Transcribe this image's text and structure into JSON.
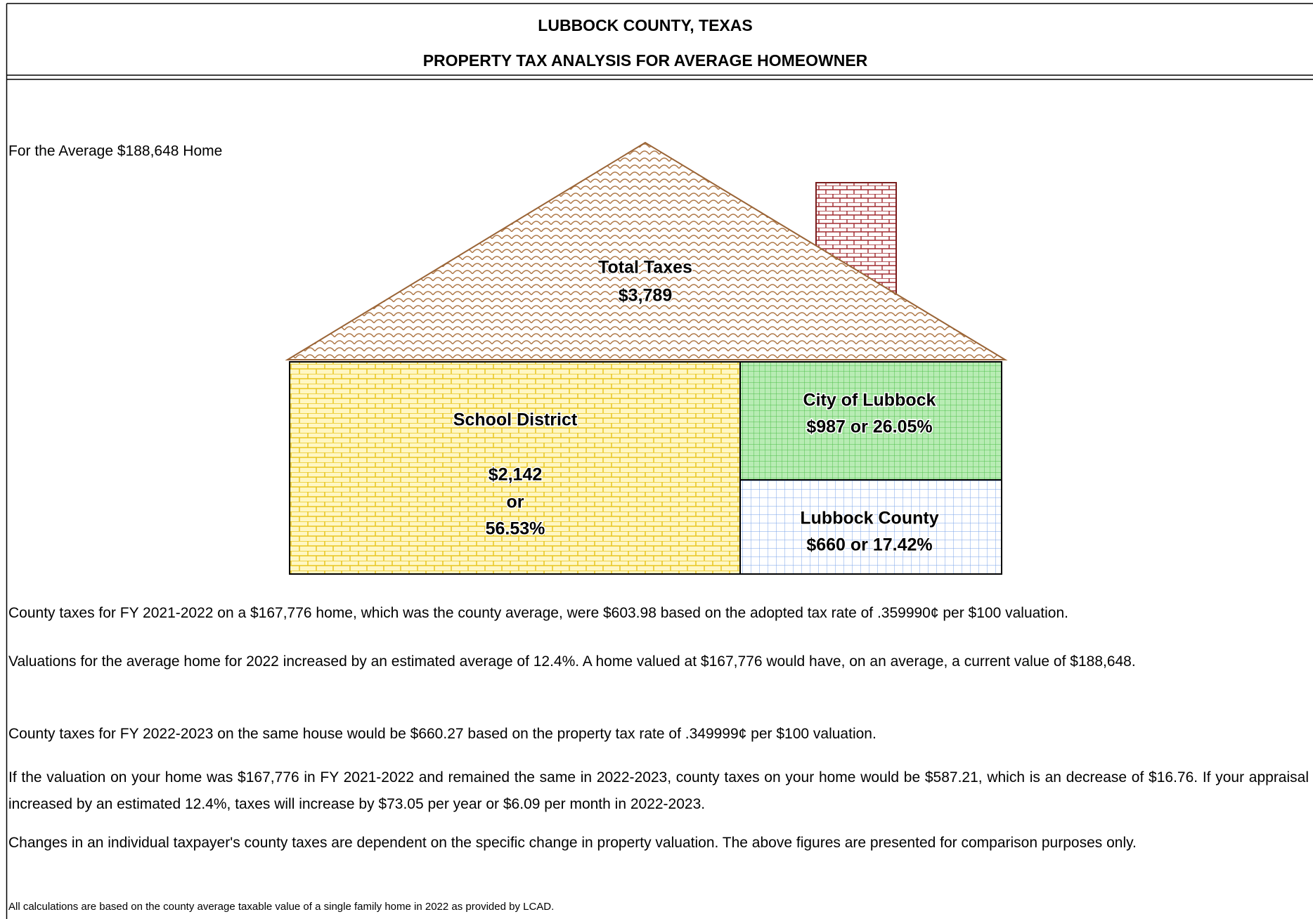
{
  "header": {
    "title": "LUBBOCK COUNTY, TEXAS",
    "subtitle": "PROPERTY TAX ANALYSIS FOR AVERAGE HOMEOWNER"
  },
  "caption": "For the Average $188,648 Home",
  "house": {
    "roof": {
      "label": "Total Taxes",
      "amount": "$3,789"
    },
    "school": {
      "label": "School District",
      "amount": "$2,142",
      "joiner": "or",
      "share": "56.53%"
    },
    "city": {
      "label": "City of Lubbock",
      "amount": "$987 or 26.05%"
    },
    "county": {
      "label": "Lubbock County",
      "amount": "$660 or 17.42%"
    }
  },
  "paragraphs": [
    "County taxes for FY 2021-2022 on a $167,776 home, which was the county average, were $603.98 based on the adopted tax rate of .359990¢ per $100 valuation.",
    "Valuations for the average home for 2022 increased by an estimated average of 12.4%.  A home valued at $167,776 would have, on an average, a current value of $188,648.",
    "County taxes for FY 2022-2023 on the same house would be $660.27 based on the property tax rate of .349999¢ per $100 valuation.",
    "If the valuation on your home was $167,776 in FY 2021-2022 and remained the same in 2022-2023, county taxes on your home would be $587.21, which is an decrease of $16.76.  If your appraisal increased by an estimated 12.4%, taxes will increase by $73.05 per year or $6.09 per month in 2022-2023.",
    "Changes in an individual taxpayer's county taxes are dependent on the specific change in property valuation.  The above figures are presented for comparison purposes only."
  ],
  "footnote": "All calculations are based on the county average taxable value of a single family home in 2022 as provided by LCAD."
}
